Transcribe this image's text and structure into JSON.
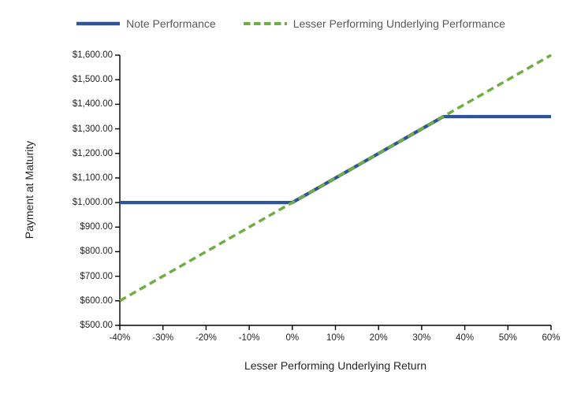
{
  "chart_data": {
    "type": "line",
    "title": "",
    "xlabel": "Lesser Performing Underlying Return",
    "ylabel": "Payment at Maturity",
    "xlim": [
      -0.4,
      0.6
    ],
    "ylim": [
      500,
      1600
    ],
    "grid": false,
    "legend_position": "top-center",
    "axis_color": "#000000",
    "tick_label_color": "#262626",
    "legend_text_color": "#595959",
    "x_ticks": [
      {
        "value": -0.4,
        "label": "-40%"
      },
      {
        "value": -0.3,
        "label": "-30%"
      },
      {
        "value": -0.2,
        "label": "-20%"
      },
      {
        "value": -0.1,
        "label": "-10%"
      },
      {
        "value": 0.0,
        "label": "0%"
      },
      {
        "value": 0.1,
        "label": "10%"
      },
      {
        "value": 0.2,
        "label": "20%"
      },
      {
        "value": 0.3,
        "label": "30%"
      },
      {
        "value": 0.4,
        "label": "40%"
      },
      {
        "value": 0.5,
        "label": "50%"
      },
      {
        "value": 0.6,
        "label": "60%"
      }
    ],
    "y_ticks": [
      {
        "value": 500,
        "label": "$500.00"
      },
      {
        "value": 600,
        "label": "$600.00"
      },
      {
        "value": 700,
        "label": "$700.00"
      },
      {
        "value": 800,
        "label": "$800.00"
      },
      {
        "value": 900,
        "label": "$900.00"
      },
      {
        "value": 1000,
        "label": "$1,000.00"
      },
      {
        "value": 1100,
        "label": "$1,100.00"
      },
      {
        "value": 1200,
        "label": "$1,200.00"
      },
      {
        "value": 1300,
        "label": "$1,300.00"
      },
      {
        "value": 1400,
        "label": "$1,400.00"
      },
      {
        "value": 1500,
        "label": "$1,500.00"
      },
      {
        "value": 1600,
        "label": "$1,600.00"
      }
    ],
    "series": [
      {
        "name": "Note Performance",
        "color": "#2F5597",
        "style": "solid",
        "points": [
          [
            -0.4,
            1000
          ],
          [
            0.0,
            1000
          ],
          [
            0.35,
            1350
          ],
          [
            0.6,
            1350
          ]
        ]
      },
      {
        "name": "Lesser Performing Underlying Performance",
        "color": "#70AD47",
        "style": "dashed",
        "points": [
          [
            -0.4,
            600
          ],
          [
            0.6,
            1600
          ]
        ]
      }
    ]
  }
}
